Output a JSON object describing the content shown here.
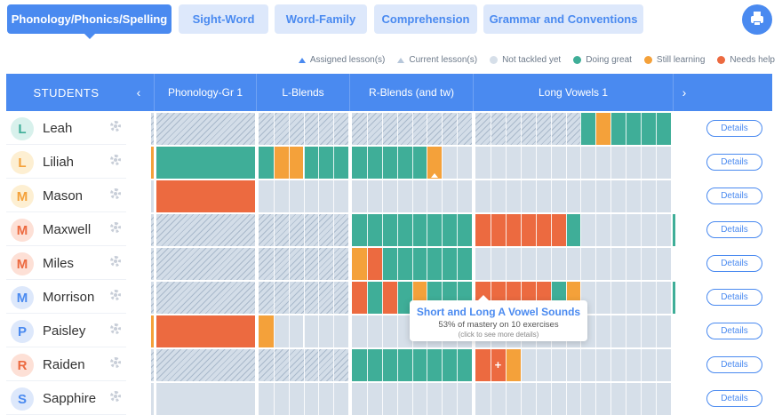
{
  "tabs": [
    {
      "label": "Phonology/Phonics/Spelling",
      "active": true
    },
    {
      "label": "Sight-Word",
      "active": false
    },
    {
      "label": "Word-Family",
      "active": false
    },
    {
      "label": "Comprehension",
      "active": false
    },
    {
      "label": "Grammar and Conventions",
      "active": false
    }
  ],
  "print_icon": "printer-icon",
  "legend": {
    "assigned": "Assigned lesson(s)",
    "current": "Current lesson(s)",
    "not_tackled": "Not tackled yet",
    "doing_great": "Doing great",
    "still_learning": "Still learning",
    "needs_help": "Needs help"
  },
  "colors": {
    "accent": "#4a8af0",
    "not_tackled": "#d6dfe9",
    "doing_great": "#3fae98",
    "still_learning": "#f4a13a",
    "needs_help": "#ec6a40"
  },
  "header": {
    "students": "STUDENTS",
    "prev_arrow": "‹",
    "next_arrow": "›",
    "columns": [
      "Phonology-Gr 1",
      "L-Blends",
      "R-Blends (and tw)",
      "Long Vowels 1"
    ]
  },
  "details_label": "Details",
  "students": [
    {
      "name": "Leah",
      "initial": "L",
      "avatar_bg": "#d8f1ec",
      "avatar_fg": "#3fae98"
    },
    {
      "name": "Liliah",
      "initial": "L",
      "avatar_bg": "#fdefd2",
      "avatar_fg": "#f4a13a"
    },
    {
      "name": "Mason",
      "initial": "M",
      "avatar_bg": "#fdefd2",
      "avatar_fg": "#f4a13a"
    },
    {
      "name": "Maxwell",
      "initial": "M",
      "avatar_bg": "#fde0d6",
      "avatar_fg": "#ec6a40"
    },
    {
      "name": "Miles",
      "initial": "M",
      "avatar_bg": "#fde0d6",
      "avatar_fg": "#ec6a40"
    },
    {
      "name": "Morrison",
      "initial": "M",
      "avatar_bg": "#dde8fb",
      "avatar_fg": "#4a8af0"
    },
    {
      "name": "Paisley",
      "initial": "P",
      "avatar_bg": "#dde8fb",
      "avatar_fg": "#4a8af0"
    },
    {
      "name": "Raiden",
      "initial": "R",
      "avatar_bg": "#fde0d6",
      "avatar_fg": "#ec6a40"
    },
    {
      "name": "Sapphire",
      "initial": "S",
      "avatar_bg": "#dde8fb",
      "avatar_fg": "#4a8af0"
    }
  ],
  "progress": [
    {
      "phonology": "hatch",
      "lblends": "hatch",
      "rblends": "hatch",
      "longvowels": "hatch",
      "longvowels_cells": [
        "hatch",
        "hatch",
        "hatch",
        "hatch",
        "hatch",
        "hatch",
        "hatch",
        "teal",
        "orange",
        "teal",
        "teal",
        "teal",
        "teal"
      ]
    },
    {
      "phonology": "teal",
      "mark_left": true,
      "lblends_cells": [
        "teal",
        "orange",
        "orange",
        "teal",
        "teal",
        "teal"
      ],
      "rblends_cells": [
        "teal",
        "teal",
        "teal",
        "teal",
        "teal",
        "orange",
        "grey",
        "grey"
      ],
      "rblends_cur": 5,
      "longvowels": "grey"
    },
    {
      "phonology": "red",
      "lblends": "grey",
      "rblends": "grey",
      "longvowels": "grey"
    },
    {
      "phonology": "hatch",
      "lblends": "hatch",
      "rblends_cells": [
        "teal",
        "teal",
        "teal",
        "teal",
        "teal",
        "teal",
        "teal",
        "teal"
      ],
      "longvowels_cells": [
        "red",
        "red",
        "red",
        "red",
        "red",
        "red",
        "teal",
        "grey",
        "grey",
        "grey",
        "grey",
        "grey",
        "grey"
      ],
      "mark_right": true
    },
    {
      "phonology": "hatch",
      "lblends": "hatch",
      "rblends_cells": [
        "orange",
        "red",
        "teal",
        "teal",
        "teal",
        "teal",
        "teal",
        "teal"
      ],
      "longvowels": "grey"
    },
    {
      "phonology": "hatch",
      "lblends": "hatch",
      "rblends_cells": [
        "red",
        "teal",
        "red",
        "teal",
        "orange",
        "teal",
        "teal",
        "teal"
      ],
      "longvowels_cells": [
        "red",
        "red",
        "red",
        "red",
        "red",
        "teal",
        "orange",
        "grey",
        "grey",
        "grey",
        "grey",
        "grey",
        "grey"
      ],
      "mark_right": true
    },
    {
      "phonology": "red",
      "mark_left": true,
      "lblends_cells": [
        "orange",
        "grey",
        "grey",
        "grey",
        "grey",
        "grey"
      ],
      "rblends": "grey",
      "longvowels": "grey"
    },
    {
      "phonology": "hatch",
      "lblends": "hatch",
      "rblends_cells": [
        "teal",
        "teal",
        "teal",
        "teal",
        "teal",
        "teal",
        "teal",
        "teal"
      ],
      "longvowels_cells": [
        "red",
        "red",
        "orange",
        "grey",
        "grey",
        "grey",
        "grey",
        "grey",
        "grey",
        "grey",
        "grey",
        "grey",
        "grey"
      ],
      "plus_index": 1
    },
    {
      "phonology": "grey",
      "lblends": "grey",
      "rblends": "grey",
      "longvowels": "grey"
    }
  ],
  "tooltip": {
    "title": "Short and Long A Vowel Sounds",
    "mastery": "53% of mastery on 10 exercises",
    "hint": "(click to see more details)",
    "plus_symbol": "+"
  }
}
